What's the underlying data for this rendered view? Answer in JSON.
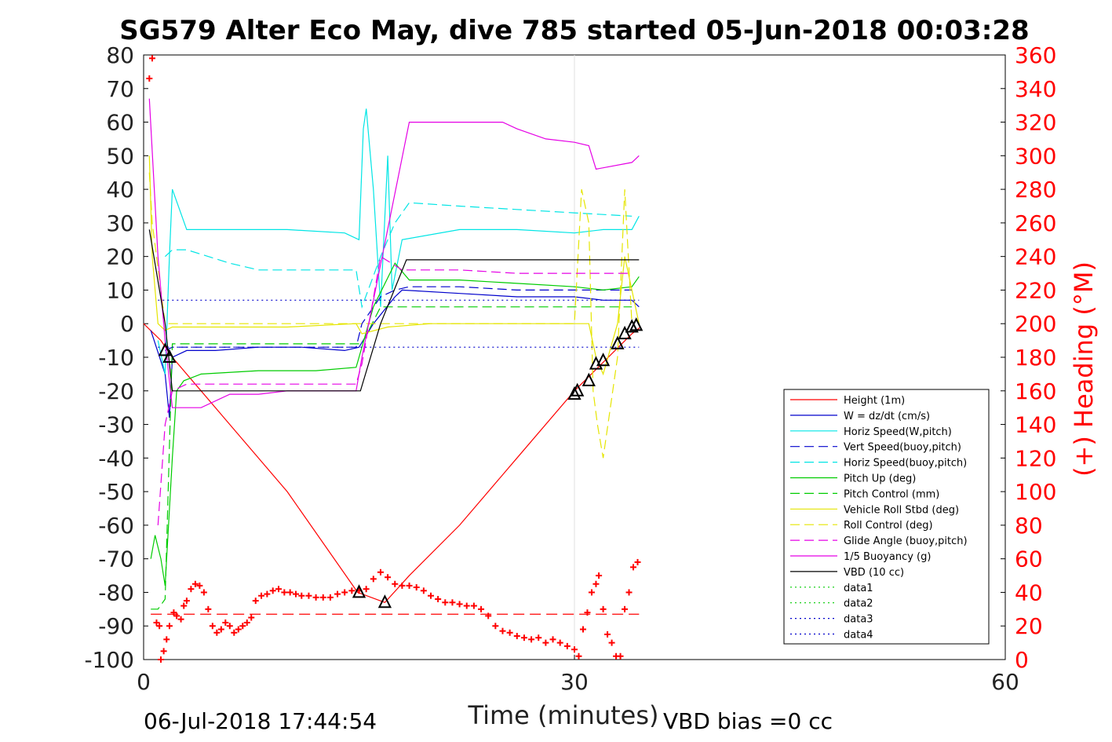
{
  "chart_data": {
    "type": "line",
    "title": "SG579 Alter Eco May, dive 785 started 05-Jun-2018 00:03:28",
    "xlabel": "Time (minutes)",
    "ylabel": "",
    "y2label": "(+) Heading (°M)",
    "xlim": [
      0,
      60
    ],
    "ylim": [
      -100,
      80
    ],
    "y2lim": [
      0,
      360
    ],
    "x_ticks": [
      "0",
      "30",
      "60"
    ],
    "y_ticks": [
      "80",
      "70",
      "60",
      "50",
      "40",
      "30",
      "20",
      "10",
      "0",
      "-10",
      "-20",
      "-30",
      "-40",
      "-50",
      "-60",
      "-70",
      "-80",
      "-90",
      "-100"
    ],
    "y2_ticks": [
      "360",
      "340",
      "320",
      "300",
      "280",
      "260",
      "240",
      "220",
      "200",
      "180",
      "160",
      "140",
      "120",
      "100",
      "80",
      "60",
      "40",
      "20",
      "0"
    ],
    "grid": "vertical at x=30",
    "legend_position": "lower-right",
    "footer_left": "06-Jul-2018 17:44:54",
    "footer_right": "VBD bias =0 cc",
    "series": [
      {
        "name": "Height (1m)",
        "color": "#ff0000",
        "style": "solid",
        "x": [
          0.0,
          1.2,
          2.0,
          6.0,
          10.0,
          14.9,
          16.8,
          18.5,
          22.0,
          26.0,
          30.0,
          34.0,
          34.6
        ],
        "y": [
          0,
          -5,
          -10,
          -30,
          -50,
          -80,
          -83,
          -75,
          -60,
          -40,
          -20,
          -3,
          -1
        ]
      },
      {
        "name": "W = dz/dt (cm/s)",
        "color": "#0000cc",
        "style": "solid",
        "x": [
          0.5,
          1.5,
          1.8,
          2.0,
          3.0,
          5.0,
          8.0,
          11.0,
          14.0,
          15.0,
          16.0,
          17.5,
          18.0,
          22.0,
          26.0,
          30.0,
          32.0,
          34.0,
          34.5
        ],
        "y": [
          -2,
          -15,
          -28,
          -10,
          -8,
          -8,
          -7,
          -7,
          -8,
          -7,
          0,
          8,
          10,
          9,
          8,
          8,
          7,
          7,
          5
        ]
      },
      {
        "name": "Horiz Speed(W,pitch)",
        "color": "#00e5e5",
        "style": "solid",
        "x": [
          1.0,
          1.5,
          1.8,
          2.0,
          3.0,
          6.0,
          10.0,
          14.0,
          15.0,
          15.3,
          15.5,
          16.0,
          16.5,
          17.0,
          17.3,
          18.0,
          22.0,
          26.0,
          30.0,
          32.0,
          34.0,
          34.5
        ],
        "y": [
          -5,
          -15,
          20,
          40,
          28,
          28,
          28,
          27,
          25,
          58,
          64,
          40,
          5,
          50,
          10,
          25,
          28,
          28,
          27,
          28,
          28,
          32
        ]
      },
      {
        "name": "Vert Speed(buoy,pitch)",
        "color": "#0000cc",
        "style": "dashed",
        "x": [
          1.5,
          2.0,
          5.0,
          10.0,
          14.8,
          15.2,
          16.5,
          17.5,
          18.5,
          22.0,
          26.0,
          30.0,
          34.0
        ],
        "y": [
          -8,
          -7,
          -7,
          -7,
          -7,
          0,
          8,
          10,
          11,
          11,
          10,
          10,
          10
        ]
      },
      {
        "name": "Horiz Speed(buoy,pitch)",
        "color": "#00e5e5",
        "style": "dashed",
        "x": [
          1.5,
          2.0,
          3.0,
          6.0,
          8.0,
          10.0,
          14.8,
          15.2,
          16.5,
          17.5,
          18.5,
          22.0,
          26.0,
          30.0,
          34.0
        ],
        "y": [
          20,
          22,
          22,
          18,
          16,
          16,
          16,
          5,
          20,
          30,
          36,
          35,
          34,
          33,
          32
        ]
      },
      {
        "name": "Pitch Up (deg)",
        "color": "#00cc00",
        "style": "solid",
        "x": [
          0.5,
          0.8,
          1.2,
          1.5,
          2.0,
          2.3,
          2.8,
          4.0,
          8.0,
          12.0,
          14.8,
          15.0,
          16.0,
          17.5,
          18.5,
          22.0,
          26.0,
          30.0,
          32.0,
          34.0,
          34.5
        ],
        "y": [
          -70,
          -63,
          -70,
          -78,
          -40,
          -20,
          -17,
          -15,
          -14,
          -14,
          -13,
          -10,
          5,
          18,
          13,
          13,
          12,
          11,
          10,
          11,
          14
        ]
      },
      {
        "name": "Pitch Control (mm)",
        "color": "#00cc00",
        "style": "dashed",
        "x": [
          0.5,
          1.0,
          1.5,
          2.0,
          3.0,
          14.8,
          15.2,
          16.5,
          17.5,
          34.0
        ],
        "y": [
          -85,
          -85,
          -82,
          -6,
          -6,
          -6,
          -6,
          5,
          5,
          5
        ]
      },
      {
        "name": "Vehicle Roll Stbd (deg)",
        "color": "#e5e500",
        "style": "solid",
        "x": [
          0.4,
          0.6,
          1.0,
          1.5,
          2.0,
          6.0,
          10.0,
          14.8,
          15.2,
          17.0,
          20.0,
          24.0,
          29.8,
          30.0,
          30.5,
          31.0,
          31.5,
          32.0,
          33.0,
          33.5,
          34.0,
          34.5
        ],
        "y": [
          50,
          20,
          0,
          -2,
          -1,
          -1,
          -1,
          0,
          -3,
          -1,
          0,
          0,
          0,
          0,
          0,
          0,
          -10,
          -15,
          0,
          20,
          10,
          0
        ]
      },
      {
        "name": "Roll Control (deg)",
        "color": "#e5e500",
        "style": "dashed",
        "x": [
          0.4,
          0.6,
          1.5,
          2.0,
          10.0,
          14.8,
          15.0,
          30.0,
          30.5,
          31.0,
          31.3,
          31.6,
          32.0,
          33.0,
          33.5,
          34.0
        ],
        "y": [
          45,
          30,
          0,
          0,
          0,
          0,
          0,
          0,
          40,
          30,
          -20,
          -30,
          -40,
          -10,
          40,
          0
        ]
      },
      {
        "name": "Glide Angle (buoy,pitch)",
        "color": "#e500e5",
        "style": "dashed",
        "x": [
          1.0,
          1.5,
          2.0,
          3.0,
          6.0,
          10.0,
          14.8,
          15.2,
          16.5,
          18.0,
          22.0,
          26.0,
          30.0,
          34.0
        ],
        "y": [
          -60,
          -30,
          -20,
          -18,
          -18,
          -18,
          -18,
          -12,
          20,
          16,
          16,
          15,
          15,
          15
        ]
      },
      {
        "name": "1/5 Buoyancy (g)",
        "color": "#e500e5",
        "style": "solid",
        "x": [
          0.4,
          1.0,
          1.5,
          2.0,
          4.0,
          6.0,
          8.0,
          10.0,
          14.8,
          15.2,
          18.5,
          20.0,
          25.0,
          26.0,
          28.0,
          30.0,
          31.0,
          31.5,
          34.0,
          34.5
        ],
        "y": [
          67,
          20,
          -5,
          -25,
          -25,
          -21,
          -21,
          -20,
          -20,
          -10,
          60,
          60,
          60,
          58,
          55,
          54,
          53,
          46,
          48,
          50
        ]
      },
      {
        "name": "VBD (10 cc)",
        "color": "#000000",
        "style": "solid",
        "x": [
          0.4,
          1.5,
          2.0,
          14.9,
          15.1,
          16.5,
          18.3,
          34.5
        ],
        "y": [
          28,
          0,
          -20,
          -20,
          -20,
          0,
          19,
          19
        ]
      },
      {
        "name": "data1",
        "color": "#00cc00",
        "style": "dotted",
        "x": [],
        "y": []
      },
      {
        "name": "data2",
        "color": "#00cc00",
        "style": "dotted",
        "x": [],
        "y": []
      },
      {
        "name": "data3",
        "color": "#0000cc",
        "style": "dotted",
        "x": [
          1.0,
          34.5
        ],
        "y": [
          7,
          7
        ]
      },
      {
        "name": "data4",
        "color": "#0000cc",
        "style": "dotted",
        "x": [
          1.0,
          34.5
        ],
        "y": [
          -7,
          -7
        ]
      }
    ],
    "heading_reference": {
      "color": "#ff0000",
      "style": "dashed",
      "x": [
        0.5,
        34.5
      ],
      "heading": 27
    },
    "heading_markers": {
      "color": "#ff0000",
      "marker": "+",
      "x": [
        0.4,
        0.6,
        0.9,
        1.1,
        1.2,
        1.4,
        1.6,
        1.8,
        2.1,
        2.3,
        2.6,
        2.8,
        3.0,
        3.3,
        3.6,
        3.9,
        4.2,
        4.5,
        4.8,
        5.1,
        5.4,
        5.7,
        6.0,
        6.3,
        6.6,
        6.9,
        7.2,
        7.5,
        7.8,
        8.2,
        8.6,
        9.0,
        9.4,
        9.8,
        10.2,
        10.6,
        11.0,
        11.5,
        12.0,
        12.5,
        13.0,
        13.5,
        14.0,
        14.5,
        15.0,
        15.5,
        16.0,
        16.5,
        17.0,
        17.5,
        18.0,
        18.5,
        19.0,
        19.5,
        20.0,
        20.5,
        21.0,
        21.5,
        22.0,
        22.5,
        23.0,
        23.5,
        24.0,
        24.5,
        25.0,
        25.5,
        26.0,
        26.5,
        27.0,
        27.5,
        28.0,
        28.5,
        29.0,
        29.5,
        30.0,
        30.3,
        30.6,
        30.9,
        31.2,
        31.5,
        31.7,
        32.0,
        32.3,
        32.6,
        32.9,
        33.2,
        33.5,
        33.8,
        34.1,
        34.4
      ],
      "heading": [
        346,
        358,
        22,
        20,
        0,
        5,
        12,
        20,
        28,
        26,
        24,
        32,
        35,
        42,
        45,
        44,
        40,
        30,
        20,
        16,
        18,
        22,
        20,
        16,
        18,
        20,
        22,
        25,
        35,
        38,
        39,
        41,
        42,
        40,
        40,
        39,
        38,
        38,
        37,
        37,
        37,
        39,
        40,
        41,
        41,
        42,
        48,
        52,
        49,
        45,
        44,
        44,
        43,
        41,
        38,
        36,
        34,
        34,
        33,
        32,
        32,
        30,
        26,
        20,
        17,
        16,
        14,
        13,
        12,
        13,
        10,
        12,
        10,
        8,
        6,
        2,
        18,
        28,
        40,
        45,
        50,
        30,
        15,
        10,
        2,
        2,
        30,
        40,
        55,
        58
      ]
    },
    "direction_markers": {
      "color": "#000000",
      "marker": "triangle",
      "x": [
        1.5,
        1.8,
        15.0,
        16.8,
        30.0,
        30.2,
        31.0,
        31.5,
        32.0,
        33.0,
        33.5,
        34.0,
        34.3
      ],
      "y": [
        -8,
        -10,
        -80,
        -83,
        -21,
        -20,
        -17,
        -12,
        -11,
        -6,
        -3,
        -1,
        -0.5
      ]
    }
  }
}
